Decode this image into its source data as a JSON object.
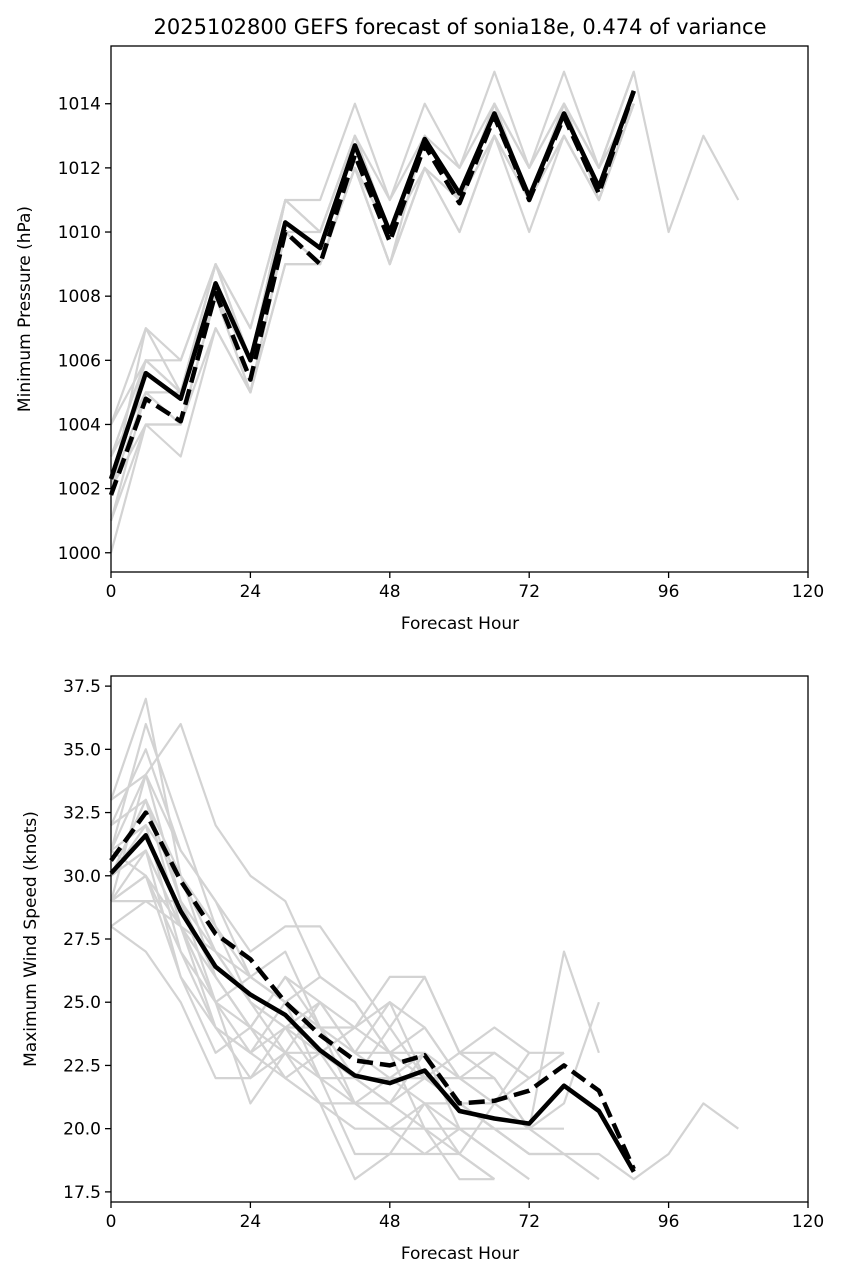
{
  "chart_data": [
    {
      "type": "line",
      "title": "2025102800 GEFS forecast of sonia18e, 0.474 of variance",
      "xlabel": "Forecast Hour",
      "ylabel": "Minimum Pressure (hPa)",
      "xlim": [
        0,
        120
      ],
      "ylim": [
        999.4,
        1015.8
      ],
      "xticks": [
        0,
        24,
        48,
        72,
        96,
        120
      ],
      "yticks": [
        1000,
        1002,
        1004,
        1006,
        1008,
        1010,
        1012,
        1014
      ],
      "grid": false,
      "ensemble_color": "#d3d3d3",
      "main_color": "#000000",
      "x": [
        0,
        6,
        12,
        18,
        24,
        30,
        36,
        42,
        48,
        54,
        60,
        66,
        72,
        78,
        84,
        90
      ],
      "ensemble": [
        {
          "x": [
            0,
            6,
            12,
            18,
            24,
            30,
            36,
            42,
            48,
            54,
            60,
            66,
            72,
            78,
            84,
            90,
            96,
            102,
            108
          ],
          "values": [
            1003,
            1006,
            1005,
            1009,
            1006,
            1011,
            1011,
            1014,
            1011,
            1014,
            1012,
            1015,
            1012,
            1015,
            1012,
            1015,
            1010,
            1013,
            1011
          ]
        },
        {
          "values": [
            1004,
            1007,
            1006,
            1009,
            1007,
            1011,
            1010,
            1013,
            1010,
            1013,
            1011,
            1014,
            1011,
            1014,
            1012,
            1014
          ]
        },
        {
          "values": [
            1002,
            1006,
            1005,
            1008,
            1006,
            1010,
            1010,
            1013,
            1010,
            1013,
            1011,
            1014,
            1011,
            1014,
            1011,
            1014
          ]
        },
        {
          "values": [
            1001,
            1004,
            1004,
            1008,
            1005,
            1010,
            1009,
            1012,
            1009,
            1012,
            1011,
            1013,
            1011,
            1013,
            1011,
            1014
          ]
        },
        {
          "values": [
            1000,
            1004,
            1003,
            1007,
            1005,
            1009,
            1009,
            1012,
            1009,
            1012,
            1010,
            1013,
            1010,
            1013,
            1011,
            1014
          ]
        },
        {
          "values": [
            1002,
            1005,
            1004,
            1008,
            1005,
            1010,
            1009,
            1012,
            1010,
            1013,
            1011,
            1013,
            1011,
            1014,
            1011,
            1014
          ]
        },
        {
          "values": [
            1003,
            1006,
            1005,
            1009,
            1006,
            1011,
            1010,
            1013,
            1010,
            1013,
            1011,
            1014,
            1012,
            1014,
            1012,
            1015
          ]
        },
        {
          "values": [
            1002,
            1007,
            1005,
            1009,
            1006,
            1010,
            1009,
            1012,
            1010,
            1013,
            1011,
            1014,
            1011,
            1013,
            1011,
            1014
          ]
        },
        {
          "values": [
            1003,
            1005,
            1004,
            1008,
            1006,
            1011,
            1010,
            1013,
            1010,
            1012,
            1011,
            1013,
            1011,
            1014,
            1011,
            1014
          ]
        },
        {
          "values": [
            1001,
            1005,
            1005,
            1008,
            1005,
            1010,
            1009,
            1012,
            1009,
            1013,
            1011,
            1014,
            1011,
            1014,
            1012,
            1014
          ]
        },
        {
          "values": [
            1004,
            1006,
            1006,
            1009,
            1007,
            1011,
            1010,
            1013,
            1011,
            1013,
            1012,
            1014,
            1012,
            1014,
            1012,
            1015
          ]
        },
        {
          "values": [
            1002,
            1004,
            1004,
            1007,
            1005,
            1009,
            1009,
            1012,
            1009,
            1012,
            1010,
            1013,
            1011,
            1013,
            1011,
            1014
          ]
        }
      ],
      "series": [
        {
          "name": "solid",
          "dash": "solid",
          "values": [
            1002.3,
            1005.6,
            1004.8,
            1008.4,
            1006.0,
            1010.3,
            1009.5,
            1012.7,
            1010.0,
            1012.9,
            1011.2,
            1013.7,
            1011.1,
            1013.7,
            1011.4,
            1014.4
          ]
        },
        {
          "name": "dashed",
          "dash": "dashed",
          "values": [
            1001.8,
            1004.8,
            1004.1,
            1008.1,
            1005.4,
            1010.0,
            1009.0,
            1012.4,
            1009.7,
            1012.7,
            1010.9,
            1013.6,
            1011.0,
            1013.6,
            1011.2,
            1014.4
          ]
        }
      ]
    },
    {
      "type": "line",
      "title": "",
      "xlabel": "Forecast Hour",
      "ylabel": "Maximum Wind Speed (knots)",
      "xlim": [
        0,
        120
      ],
      "ylim": [
        17.1,
        37.9
      ],
      "xticks": [
        0,
        24,
        48,
        72,
        96,
        120
      ],
      "yticks": [
        17.5,
        20.0,
        22.5,
        25.0,
        27.5,
        30.0,
        32.5,
        35.0,
        37.5
      ],
      "ytick_labels": [
        "17.5",
        "20.0",
        "22.5",
        "25.0",
        "27.5",
        "30.0",
        "32.5",
        "35.0",
        "37.5"
      ],
      "grid": false,
      "ensemble_color": "#d3d3d3",
      "main_color": "#000000",
      "x": [
        0,
        6,
        12,
        18,
        24,
        30,
        36,
        42,
        48,
        54,
        60,
        66,
        72,
        78,
        84,
        90
      ],
      "ensemble": [
        {
          "x": [
            0,
            6,
            12,
            18,
            24,
            30,
            36,
            42,
            48,
            54,
            60,
            66,
            72,
            78,
            84,
            90,
            96,
            102,
            108
          ],
          "values": [
            30,
            31,
            28,
            25,
            24,
            23,
            22,
            21,
            21,
            20,
            20,
            20,
            19,
            19,
            19,
            18,
            19,
            21,
            20
          ]
        },
        {
          "values": [
            33,
            37,
            30,
            27,
            25,
            24,
            23,
            22,
            22,
            21,
            21,
            20,
            20,
            27,
            23
          ]
        },
        {
          "values": [
            31,
            36,
            32,
            28,
            26,
            25,
            24,
            23,
            22,
            22,
            21,
            21,
            20,
            21,
            25
          ]
        },
        {
          "values": [
            29,
            34,
            36,
            32,
            30,
            29,
            26,
            25,
            23,
            23,
            21,
            20,
            19,
            19,
            18
          ]
        },
        {
          "values": [
            32,
            35,
            31,
            29,
            27,
            28,
            28,
            26,
            24,
            26,
            23,
            23,
            22,
            23
          ]
        },
        {
          "values": [
            30,
            33,
            30,
            26,
            24,
            26,
            25,
            24,
            26,
            26,
            23,
            22,
            20,
            20
          ]
        },
        {
          "values": [
            29,
            30,
            28,
            25,
            23,
            22,
            21,
            21,
            20,
            20,
            18,
            18
          ]
        },
        {
          "values": [
            28,
            29,
            29,
            27,
            26,
            25,
            22,
            19,
            19,
            19,
            20,
            19
          ]
        },
        {
          "values": [
            30,
            32,
            30,
            28,
            25,
            23,
            21,
            18,
            19,
            21,
            19,
            18
          ]
        },
        {
          "values": [
            31,
            34,
            31,
            29,
            26,
            25,
            24,
            22,
            21,
            23,
            22,
            23,
            22
          ]
        },
        {
          "values": [
            29,
            30,
            27,
            24,
            23,
            24,
            24,
            24,
            25,
            24,
            22,
            22,
            20
          ]
        },
        {
          "values": [
            32,
            33,
            29,
            26,
            24,
            22,
            21,
            20,
            20,
            21,
            20,
            19,
            18
          ]
        },
        {
          "values": [
            30,
            31,
            28,
            24,
            23,
            25,
            26,
            25,
            23,
            22,
            21,
            20,
            19
          ]
        },
        {
          "values": [
            28,
            27,
            25,
            22,
            22,
            24,
            25,
            23,
            23,
            24,
            22,
            21,
            22
          ]
        },
        {
          "values": [
            31,
            32,
            27,
            25,
            26,
            27,
            24,
            22,
            21,
            22,
            23,
            24,
            23,
            23
          ]
        },
        {
          "values": [
            29,
            31,
            26,
            24,
            22,
            23,
            23,
            24,
            23,
            20,
            19,
            21,
            23
          ]
        },
        {
          "values": [
            30,
            33,
            28,
            27,
            25,
            24,
            22,
            22,
            24,
            22,
            22,
            21,
            20,
            19
          ]
        },
        {
          "values": [
            33,
            34,
            29,
            25,
            21,
            23,
            25,
            23,
            25,
            22,
            21,
            20,
            19
          ]
        },
        {
          "values": [
            29,
            29,
            28,
            26,
            24,
            26,
            24,
            21,
            22,
            23,
            20,
            19
          ]
        },
        {
          "values": [
            31,
            30,
            26,
            23,
            24,
            22,
            23,
            21,
            20,
            19,
            19,
            18
          ]
        }
      ],
      "series": [
        {
          "name": "solid",
          "dash": "solid",
          "values": [
            30.1,
            31.6,
            28.6,
            26.4,
            25.3,
            24.5,
            23.1,
            22.1,
            21.8,
            22.3,
            20.7,
            20.4,
            20.2,
            21.7,
            20.7,
            18.3
          ]
        },
        {
          "name": "dashed",
          "dash": "dashed",
          "values": [
            30.6,
            32.5,
            29.8,
            27.7,
            26.7,
            25.0,
            23.7,
            22.7,
            22.5,
            22.9,
            21.0,
            21.1,
            21.5,
            22.5,
            21.5,
            18.4
          ]
        }
      ]
    }
  ]
}
